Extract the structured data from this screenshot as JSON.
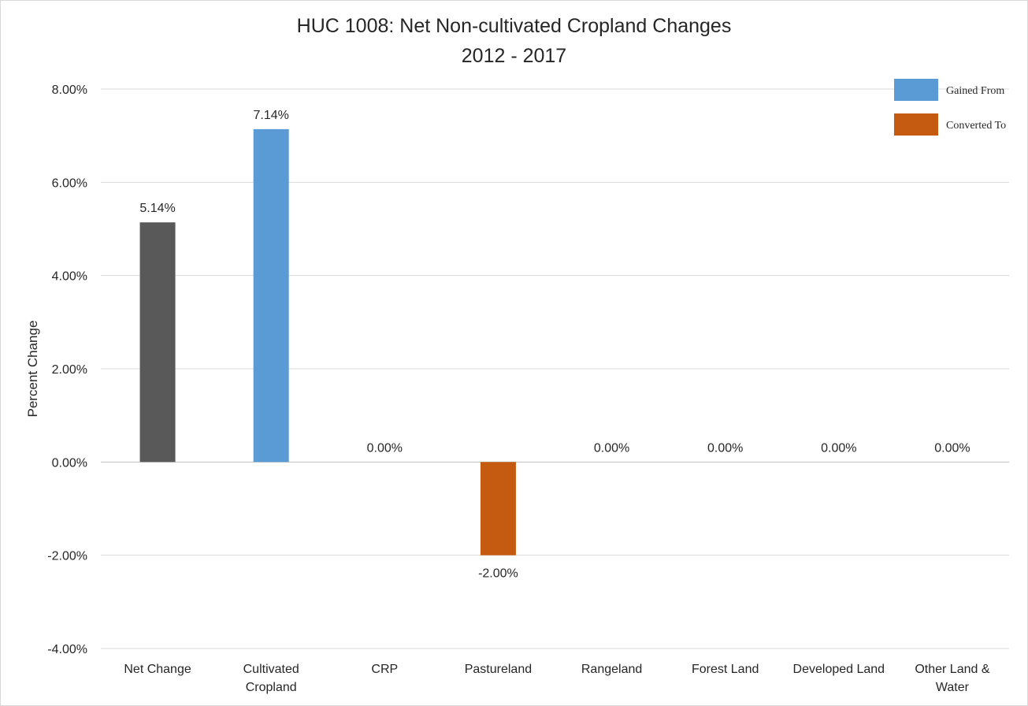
{
  "chart_data": {
    "type": "bar",
    "title": "HUC 1008: Net Non-cultivated Cropland Changes",
    "subtitle": "2012 - 2017",
    "xlabel": "",
    "ylabel": "Percent Change",
    "categories": [
      [
        "Net Change"
      ],
      [
        "Cultivated",
        "Cropland"
      ],
      [
        "CRP"
      ],
      [
        "Pastureland"
      ],
      [
        "Rangeland"
      ],
      [
        "Forest Land"
      ],
      [
        "Developed Land"
      ],
      [
        "Other Land &",
        "Water"
      ]
    ],
    "values": [
      5.14,
      7.14,
      0.0,
      -2.0,
      0.0,
      0.0,
      0.0,
      0.0
    ],
    "data_labels": [
      "5.14%",
      "7.14%",
      "0.00%",
      "-2.00%",
      "0.00%",
      "0.00%",
      "0.00%",
      "0.00%"
    ],
    "bar_colors": [
      "#595959",
      "#5b9bd5",
      "#5b9bd5",
      "#c55a11",
      "#5b9bd5",
      "#5b9bd5",
      "#5b9bd5",
      "#5b9bd5"
    ],
    "ylim": [
      -4,
      8
    ],
    "yticks": [
      8,
      6,
      4,
      2,
      0,
      -2,
      -4
    ],
    "ytick_labels": [
      "8.00%",
      "6.00%",
      "4.00%",
      "2.00%",
      "0.00%",
      "-2.00%",
      "-4.00%"
    ],
    "grid": true,
    "legend_position": "top-right",
    "legend": [
      {
        "label": "Gained From",
        "color": "#5b9bd5"
      },
      {
        "label": "Converted To",
        "color": "#c55a11"
      }
    ]
  }
}
